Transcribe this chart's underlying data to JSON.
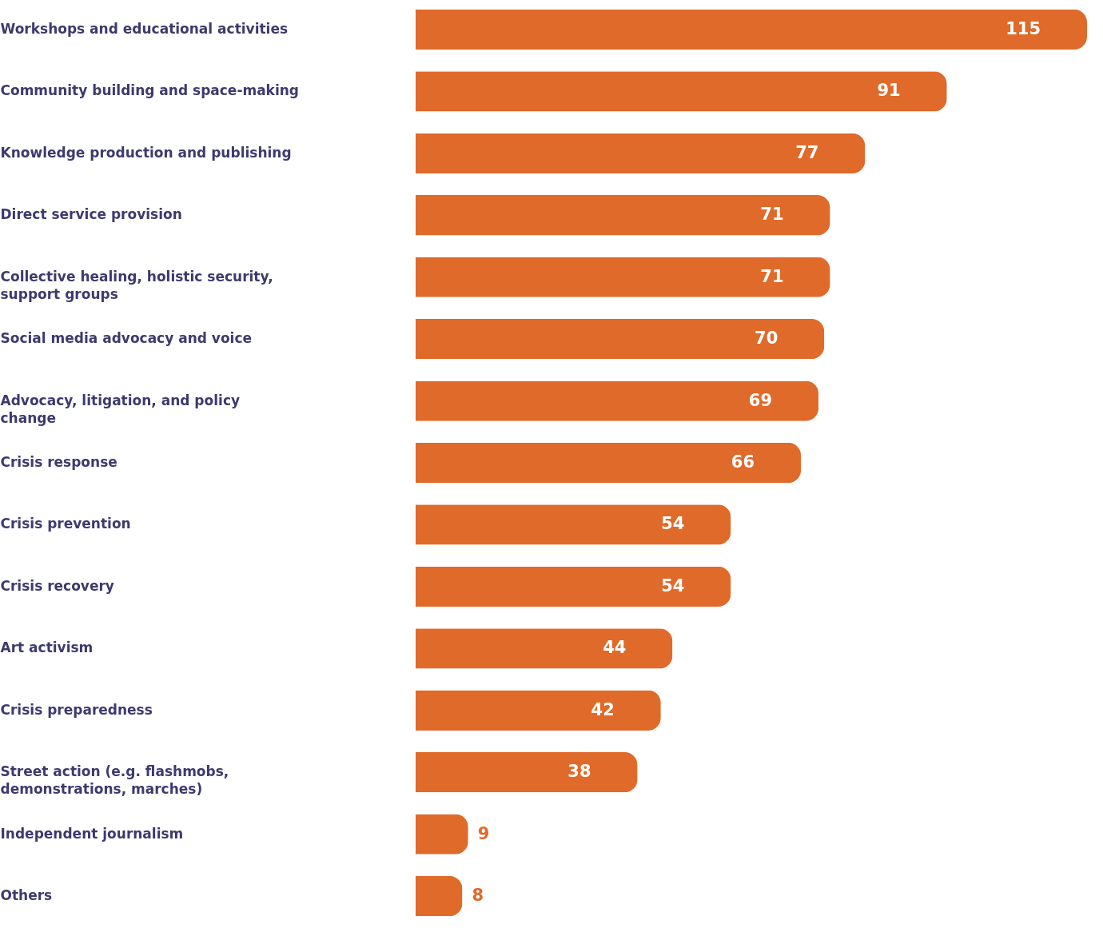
{
  "chart_data": {
    "type": "bar",
    "orientation": "horizontal",
    "data_labels": true,
    "categories": [
      "Workshops and educational activities",
      "Community building and space-making",
      "Knowledge production and publishing",
      "Direct service provision",
      "Collective healing, holistic security, support groups",
      "Social media advocacy and voice",
      "Advocacy, litigation, and policy change",
      "Crisis response",
      "Crisis prevention",
      "Crisis recovery",
      "Art activism",
      "Crisis preparedness",
      "Street action (e.g. flashmobs, demonstrations, marches)",
      "Independent journalism",
      "Others"
    ],
    "values": [
      115,
      91,
      77,
      71,
      71,
      70,
      69,
      66,
      54,
      54,
      44,
      42,
      38,
      9,
      8
    ],
    "color": "#e06a2a"
  }
}
